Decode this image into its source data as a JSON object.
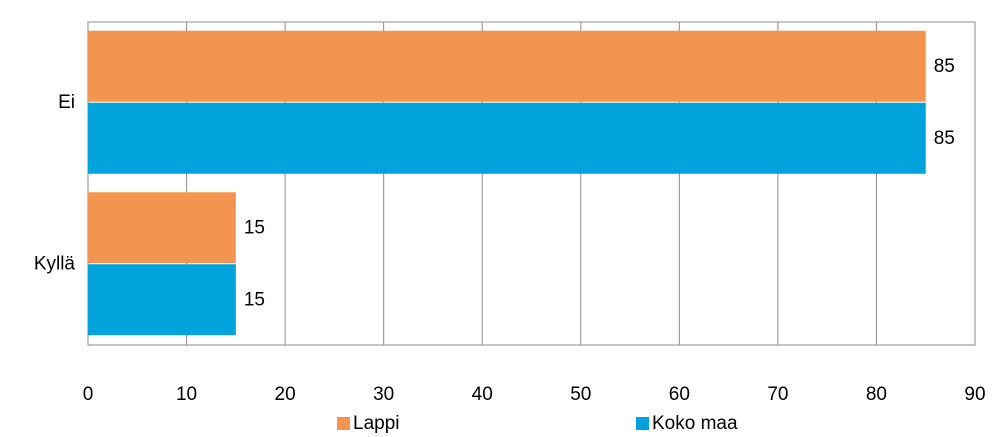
{
  "chart_data": {
    "type": "hbar",
    "categories": [
      "Ei",
      "Kyllä"
    ],
    "series": [
      {
        "name": "Lappi",
        "color": "#f39550",
        "values": [
          85,
          15
        ]
      },
      {
        "name": "Koko maa",
        "color": "#00a3db",
        "values": [
          85,
          15
        ]
      }
    ],
    "xlim": [
      0,
      90
    ],
    "xticks": [
      0,
      10,
      20,
      30,
      40,
      50,
      60,
      70,
      80,
      90
    ],
    "grid": true,
    "legend": "bottom",
    "data_labels": true
  }
}
